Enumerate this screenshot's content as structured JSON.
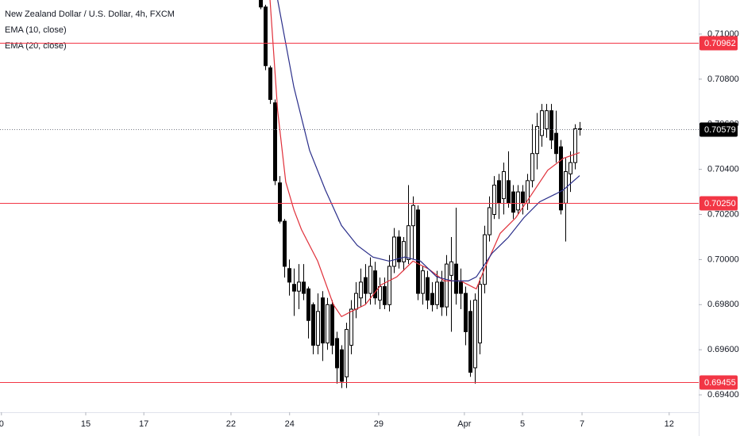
{
  "chart_data": {
    "type": "candlestick",
    "title": "New Zealand Dollar / U.S. Dollar, 4h, FXCM",
    "xlim": [
      -0.7,
      146
    ],
    "ylim": [
      0.69323,
      0.71151
    ],
    "xticks": [
      {
        "value": -0.4,
        "label": "0"
      },
      {
        "value": 17.3,
        "label": "15"
      },
      {
        "value": 29.5,
        "label": "17"
      },
      {
        "value": 47.8,
        "label": "22"
      },
      {
        "value": 60.1,
        "label": "24"
      },
      {
        "value": 78.8,
        "label": "29"
      },
      {
        "value": 96.8,
        "label": "Apr"
      },
      {
        "value": 109,
        "label": "5"
      },
      {
        "value": 121.5,
        "label": "7"
      },
      {
        "value": 139.8,
        "label": "12"
      }
    ],
    "yticks": [
      {
        "value": 0.694,
        "label": "0.69400"
      },
      {
        "value": 0.696,
        "label": "0.69600"
      },
      {
        "value": 0.698,
        "label": "0.69800"
      },
      {
        "value": 0.7,
        "label": "0.70000"
      },
      {
        "value": 0.702,
        "label": "0.70200"
      },
      {
        "value": 0.704,
        "label": "0.70400"
      },
      {
        "value": 0.706,
        "label": "0.70600"
      },
      {
        "value": 0.708,
        "label": "0.70800"
      },
      {
        "value": 0.71,
        "label": "0.71000"
      }
    ],
    "x": [
      54,
      55,
      56,
      57,
      58,
      59,
      60,
      61,
      62,
      63,
      64,
      65,
      66,
      67,
      68,
      69,
      70,
      71,
      72,
      73,
      74,
      75,
      76,
      77,
      78,
      79,
      80,
      81,
      82,
      83,
      84,
      85,
      86,
      87,
      88,
      89,
      90,
      91,
      92,
      93,
      94,
      95,
      96,
      97,
      98,
      99,
      100,
      101,
      102,
      103,
      104,
      105,
      106,
      107,
      108,
      109,
      110,
      111,
      112,
      113,
      114,
      115,
      116,
      117,
      118,
      119,
      120,
      121
    ],
    "open": [
      0.7118,
      0.7112,
      0.7085,
      0.70695,
      0.7034,
      0.7017,
      0.6996,
      0.6989,
      0.6986,
      0.699,
      0.6987,
      0.698,
      0.6962,
      0.6983,
      0.6963,
      0.698,
      0.6965,
      0.696,
      0.6948,
      0.6962,
      0.6978,
      0.6983,
      0.6992,
      0.6985,
      0.6995,
      0.6982,
      0.6988,
      0.698,
      0.6997,
      0.701,
      0.6999,
      0.7,
      0.7015,
      0.7022,
      0.6985,
      0.6992,
      0.6985,
      0.698,
      0.699,
      0.6979,
      0.6993,
      0.6998,
      0.699,
      0.6985,
      0.6977,
      0.6952,
      0.6963,
      0.6989,
      0.7011,
      0.702,
      0.7035,
      0.7027,
      0.7035,
      0.703,
      0.7022,
      0.703,
      0.7025,
      0.7035,
      0.7047,
      0.7055,
      0.7058,
      0.7066,
      0.7056,
      0.705,
      0.7025,
      0.7038,
      0.7043,
      0.7058
    ],
    "high": [
      0.712,
      0.7113,
      0.7086,
      0.7071,
      0.7037,
      0.7018,
      0.7,
      0.6996,
      0.6998,
      0.6998,
      0.6988,
      0.6981,
      0.6985,
      0.6986,
      0.6983,
      0.6982,
      0.6968,
      0.6962,
      0.6972,
      0.6982,
      0.699,
      0.6996,
      0.6998,
      0.7001,
      0.6999,
      0.6992,
      0.6992,
      0.7002,
      0.7014,
      0.7013,
      0.701,
      0.7033,
      0.7028,
      0.7024,
      0.6997,
      0.6995,
      0.699,
      0.6995,
      0.6995,
      0.7002,
      0.701,
      0.7023,
      0.6996,
      0.6988,
      0.6982,
      0.6985,
      0.6992,
      0.7015,
      0.7028,
      0.7037,
      0.7038,
      0.7043,
      0.7048,
      0.7033,
      0.7033,
      0.7033,
      0.7038,
      0.706,
      0.7065,
      0.7069,
      0.7069,
      0.7069,
      0.7066,
      0.7053,
      0.7045,
      0.7048,
      0.706,
      0.7061
    ],
    "low": [
      0.7111,
      0.7084,
      0.7069,
      0.7033,
      0.7016,
      0.6992,
      0.6984,
      0.6975,
      0.6978,
      0.6982,
      0.6965,
      0.6958,
      0.6958,
      0.6955,
      0.696,
      0.6958,
      0.6945,
      0.6943,
      0.6943,
      0.6958,
      0.6974,
      0.6979,
      0.698,
      0.698,
      0.698,
      0.6978,
      0.6978,
      0.6977,
      0.6994,
      0.6996,
      0.6995,
      0.6998,
      0.7,
      0.6982,
      0.698,
      0.6978,
      0.6977,
      0.6978,
      0.6975,
      0.6975,
      0.6968,
      0.698,
      0.6978,
      0.6962,
      0.6948,
      0.6945,
      0.6958,
      0.6985,
      0.7008,
      0.7018,
      0.7018,
      0.702,
      0.7023,
      0.7018,
      0.702,
      0.702,
      0.7022,
      0.7032,
      0.704,
      0.705,
      0.7054,
      0.7049,
      0.7043,
      0.702,
      0.7008,
      0.703,
      0.704,
      0.7055
    ],
    "close": [
      0.7112,
      0.7086,
      0.7071,
      0.7035,
      0.7017,
      0.6997,
      0.699,
      0.6986,
      0.699,
      0.6985,
      0.6973,
      0.6962,
      0.6977,
      0.6963,
      0.698,
      0.6962,
      0.6952,
      0.6946,
      0.6969,
      0.6978,
      0.6985,
      0.699,
      0.6985,
      0.6997,
      0.6983,
      0.6988,
      0.698,
      0.6997,
      0.701,
      0.6999,
      0.7008,
      0.7015,
      0.7024,
      0.6985,
      0.6995,
      0.6982,
      0.698,
      0.699,
      0.6979,
      0.6998,
      0.6999,
      0.6985,
      0.6985,
      0.6968,
      0.695,
      0.6982,
      0.6989,
      0.7011,
      0.7023,
      0.7033,
      0.7025,
      0.7039,
      0.7025,
      0.7021,
      0.703,
      0.7025,
      0.7035,
      0.7047,
      0.7059,
      0.7066,
      0.7066,
      0.7053,
      0.7047,
      0.7022,
      0.7039,
      0.7043,
      0.7058,
      0.7058
    ],
    "indicators": [
      {
        "name": "EMA (10, close)",
        "color": "#e0303a",
        "x": [
          56,
          57.6,
          59.3,
          61,
          62.6,
          66,
          69.3,
          71,
          72.6,
          76,
          79.3,
          82.6,
          86,
          89.3,
          92.6,
          96,
          99.3,
          101,
          104.3,
          107.6,
          111,
          114.3,
          117.6,
          121
        ],
        "values": [
          0.71151,
          0.7066,
          0.70344,
          0.70221,
          0.70133,
          0.69993,
          0.698,
          0.69747,
          0.69765,
          0.698,
          0.69888,
          0.69923,
          0.69993,
          0.69958,
          0.69905,
          0.69905,
          0.6987,
          0.69958,
          0.70116,
          0.70186,
          0.70291,
          0.70396,
          0.70449,
          0.70474
        ]
      },
      {
        "name": "EMA (20, close)",
        "color": "#2a2e8a",
        "x": [
          57.6,
          61,
          64.3,
          67.6,
          71,
          74.3,
          77.6,
          81,
          84.3,
          87.6,
          91,
          94.3,
          97.6,
          99.3,
          102.6,
          106,
          109.3,
          112.6,
          116,
          117.6,
          121
        ],
        "values": [
          0.71151,
          0.70765,
          0.70484,
          0.70309,
          0.70151,
          0.70063,
          0.70011,
          0.69993,
          0.70011,
          0.69993,
          0.69923,
          0.69905,
          0.69905,
          0.69923,
          0.70028,
          0.70098,
          0.70186,
          0.70256,
          0.70291,
          0.70309,
          0.70372
        ]
      }
    ],
    "levels": [
      {
        "value": 0.70962,
        "label": "0.70962",
        "color": "#f23645"
      },
      {
        "value": 0.7025,
        "label": "0.70250",
        "color": "#f23645"
      },
      {
        "value": 0.69455,
        "label": "0.69455",
        "color": "#f23645"
      }
    ],
    "last_price": {
      "value": 0.70579,
      "label": "0.70579",
      "color": "#000000"
    }
  }
}
